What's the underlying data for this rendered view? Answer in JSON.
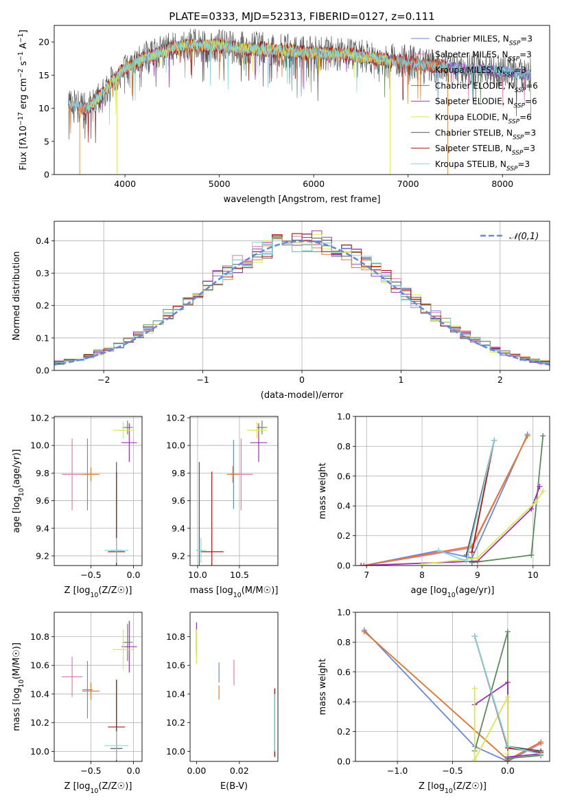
{
  "figure_title": "PLATE=0333, MJD=52313, FIBERID=0127, z=0.111",
  "models": [
    {
      "name": "Chabrier MILES",
      "nssp": "3",
      "color": "#6688dd"
    },
    {
      "name": "Salpeter MILES",
      "nssp": "3",
      "color": "#e079b3"
    },
    {
      "name": "Kroupa MILES",
      "nssp": "3",
      "color": "#e07b2a"
    },
    {
      "name": "Chabrier ELODIE",
      "nssp": "6",
      "color": "#5a8a5a"
    },
    {
      "name": "Salpeter ELODIE",
      "nssp": "6",
      "color": "#9a30b0"
    },
    {
      "name": "Kroupa ELODIE",
      "nssp": "6",
      "color": "#d8e84a"
    },
    {
      "name": "Chabrier STELIB",
      "nssp": "3",
      "color": "#555555"
    },
    {
      "name": "Salpeter STELIB",
      "nssp": "3",
      "color": "#b01010"
    },
    {
      "name": "Kroupa STELIB",
      "nssp": "3",
      "color": "#7fd6e0"
    }
  ],
  "chart_data": [
    {
      "id": "spectrum",
      "type": "line",
      "xlabel": "wavelength [Angstrom, rest frame]",
      "ylabel": "Flux [fλ10⁻¹⁷ erg cm⁻² s⁻¹ A⁻¹]",
      "xlim": [
        3250,
        8500
      ],
      "ylim": [
        0,
        22.5
      ],
      "xticks": [
        4000,
        5000,
        6000,
        7000,
        8000
      ],
      "yticks": [
        0,
        5,
        10,
        15,
        20
      ],
      "grid": false,
      "legend": "right",
      "continuum": {
        "x": [
          3400,
          3600,
          3750,
          3900,
          4000,
          4200,
          4400,
          4600,
          4800,
          5000,
          5200,
          5400,
          5600,
          5800,
          6000,
          6200,
          6400,
          6600,
          6800,
          7000,
          7200,
          7400,
          7600,
          7800,
          8000,
          8200,
          8300
        ],
        "y": [
          10.5,
          10,
          12,
          14.5,
          16,
          17.5,
          18.5,
          19.5,
          19.5,
          19.5,
          19.0,
          19.0,
          18.8,
          18.5,
          18.3,
          18.3,
          18.0,
          17.6,
          17.3,
          17.0,
          16.5,
          16.3,
          16.0,
          15.8,
          15.5,
          15.2,
          15.0
        ]
      }
    },
    {
      "id": "residuals",
      "type": "histogram",
      "xlabel": "(data-model)/error",
      "ylabel": "Normed distribution",
      "xlim": [
        -2.5,
        2.5
      ],
      "ylim": [
        0,
        0.46
      ],
      "xticks": [
        -2,
        -1,
        0,
        1,
        2
      ],
      "yticks": [
        0.0,
        0.1,
        0.2,
        0.3,
        0.4
      ],
      "grid": true,
      "legend": "top-right",
      "reference_label": "𝒩(0,1)",
      "bin_width": 0.1
    },
    {
      "id": "age-vs-Z",
      "type": "errorbar",
      "xlabel": "Z [log₁₀(Z/Z☉)]",
      "ylabel": "age  [log₁₀(age/yr)]",
      "xlim": [
        -0.93,
        0.1
      ],
      "ylim": [
        9.13,
        10.21
      ],
      "xticks": [
        -0.5,
        0.0
      ],
      "yticks": [
        9.2,
        9.4,
        9.6,
        9.8,
        10.0,
        10.2
      ],
      "grid": true,
      "points": [
        {
          "model": 0,
          "x": -0.54,
          "y": 9.79,
          "xerr": 0.06,
          "yerr": 0.26
        },
        {
          "model": 1,
          "x": -0.72,
          "y": 9.79,
          "xerr": 0.12,
          "yerr": 0.26
        },
        {
          "model": 2,
          "x": -0.5,
          "y": 9.79,
          "xerr": 0.1,
          "yerr": 0.05
        },
        {
          "model": 3,
          "x": -0.07,
          "y": 10.13,
          "xerr": 0.06,
          "yerr": 0.05
        },
        {
          "model": 4,
          "x": -0.05,
          "y": 10.02,
          "xerr": 0.09,
          "yerr": 0.14
        },
        {
          "model": 5,
          "x": -0.12,
          "y": 10.11,
          "xerr": 0.12,
          "yerr": 0.06
        },
        {
          "model": 6,
          "x": -0.2,
          "y": 9.24,
          "xerr": 0.07,
          "yerr": 0.64
        },
        {
          "model": 7,
          "x": -0.2,
          "y": 9.23,
          "xerr": 0.1,
          "yerr": 0.58
        },
        {
          "model": 8,
          "x": -0.2,
          "y": 9.24,
          "xerr": 0.14,
          "yerr": 0.09
        }
      ]
    },
    {
      "id": "age-vs-mass",
      "type": "errorbar",
      "xlabel": "mass [log₁₀(M/M☉)]",
      "ylabel": "",
      "xlim": [
        9.91,
        10.96
      ],
      "ylim": [
        9.13,
        10.21
      ],
      "xticks": [
        10.0,
        10.5
      ],
      "yticks": [
        9.2,
        9.4,
        9.6,
        9.8,
        10.0,
        10.2
      ],
      "grid": true,
      "points": [
        {
          "model": 0,
          "x": 10.43,
          "y": 9.79,
          "xerr": 0.04,
          "yerr": 0.25
        },
        {
          "model": 1,
          "x": 10.52,
          "y": 9.79,
          "xerr": 0.14,
          "yerr": 0.26
        },
        {
          "model": 2,
          "x": 10.42,
          "y": 9.79,
          "xerr": 0.07,
          "yerr": 0.06
        },
        {
          "model": 3,
          "x": 10.77,
          "y": 10.13,
          "xerr": 0.06,
          "yerr": 0.05
        },
        {
          "model": 4,
          "x": 10.73,
          "y": 10.02,
          "xerr": 0.1,
          "yerr": 0.14
        },
        {
          "model": 5,
          "x": 10.71,
          "y": 10.11,
          "xerr": 0.12,
          "yerr": 0.06
        },
        {
          "model": 6,
          "x": 10.02,
          "y": 9.24,
          "xerr": 0.03,
          "yerr": 0.64
        },
        {
          "model": 7,
          "x": 10.17,
          "y": 9.23,
          "xerr": 0.14,
          "yerr": 0.58
        },
        {
          "model": 8,
          "x": 10.04,
          "y": 9.24,
          "xerr": 0.06,
          "yerr": 0.09
        }
      ]
    },
    {
      "id": "weight-vs-age",
      "type": "line",
      "xlabel": "age  [log₁₀(age/yr)]",
      "ylabel": "mass weight",
      "xlim": [
        6.8,
        10.3
      ],
      "ylim": [
        0,
        1.0
      ],
      "xticks": [
        7,
        8,
        9,
        10
      ],
      "yticks": [
        0.0,
        0.2,
        0.4,
        0.6,
        0.8,
        1.0
      ],
      "grid": true,
      "series": [
        {
          "model": 0,
          "x": [
            6.95,
            8.3,
            8.9,
            9.9
          ],
          "y": [
            0.0,
            0.1,
            0.05,
            0.88
          ]
        },
        {
          "model": 1,
          "x": [
            6.95,
            8.9,
            9.9
          ],
          "y": [
            0.0,
            0.12,
            0.87
          ]
        },
        {
          "model": 2,
          "x": [
            6.95,
            8.9,
            9.9
          ],
          "y": [
            0.0,
            0.13,
            0.87
          ]
        },
        {
          "model": 3,
          "x": [
            8.9,
            9.97,
            10.18
          ],
          "y": [
            0.02,
            0.07,
            0.87
          ]
        },
        {
          "model": 4,
          "x": [
            6.9,
            9.0,
            9.97,
            10.12
          ],
          "y": [
            0.0,
            0.03,
            0.38,
            0.53
          ]
        },
        {
          "model": 5,
          "x": [
            8.0,
            9.0,
            10.06,
            10.18
          ],
          "y": [
            0.01,
            0.05,
            0.43,
            0.5
          ]
        },
        {
          "model": 6,
          "x": [
            8.8,
            9.3
          ],
          "y": [
            0.07,
            0.84
          ]
        },
        {
          "model": 7,
          "x": [
            8.9,
            9.3
          ],
          "y": [
            0.09,
            0.84
          ]
        },
        {
          "model": 8,
          "x": [
            8.3,
            8.8,
            9.3
          ],
          "y": [
            0.1,
            0.03,
            0.84
          ]
        }
      ]
    },
    {
      "id": "mass-vs-Z",
      "type": "errorbar",
      "xlabel": "Z [log₁₀(Z/Z☉)]",
      "ylabel": "mass [log₁₀(M/M☉)]",
      "xlim": [
        -0.93,
        0.1
      ],
      "ylim": [
        9.93,
        10.97
      ],
      "xticks": [
        -0.5,
        0.0
      ],
      "yticks": [
        10.0,
        10.2,
        10.4,
        10.6,
        10.8
      ],
      "grid": true,
      "points": [
        {
          "model": 0,
          "x": -0.54,
          "y": 10.43,
          "xerr": 0.06,
          "yerr": 0.2
        },
        {
          "model": 1,
          "x": -0.72,
          "y": 10.52,
          "xerr": 0.12,
          "yerr": 0.14
        },
        {
          "model": 2,
          "x": -0.5,
          "y": 10.42,
          "xerr": 0.1,
          "yerr": 0.06
        },
        {
          "model": 3,
          "x": -0.07,
          "y": 10.76,
          "xerr": 0.06,
          "yerr": 0.13
        },
        {
          "model": 4,
          "x": -0.05,
          "y": 10.73,
          "xerr": 0.09,
          "yerr": 0.18
        },
        {
          "model": 5,
          "x": -0.12,
          "y": 10.71,
          "xerr": 0.12,
          "yerr": 0.14
        },
        {
          "model": 6,
          "x": -0.2,
          "y": 10.02,
          "xerr": 0.07,
          "yerr": 0.48
        },
        {
          "model": 7,
          "x": -0.2,
          "y": 10.17,
          "xerr": 0.1,
          "yerr": 0.33
        },
        {
          "model": 8,
          "x": -0.2,
          "y": 10.04,
          "xerr": 0.14,
          "yerr": 0.1
        }
      ]
    },
    {
      "id": "mass-vs-EBV",
      "type": "errorbar",
      "xlabel": "E(B-V)",
      "ylabel": "",
      "xlim": [
        -0.003,
        0.038
      ],
      "ylim": [
        9.93,
        10.97
      ],
      "xticks": [
        0.0,
        0.02
      ],
      "xtick_labels": [
        "0.00",
        "0.02"
      ],
      "yticks": [
        10.0,
        10.2,
        10.4,
        10.6,
        10.8
      ],
      "grid": false,
      "points": [
        {
          "model": 0,
          "x": 0.0105,
          "y": 10.55,
          "xerr": 0,
          "yerr": 0.07
        },
        {
          "model": 1,
          "x": 0.0175,
          "y": 10.55,
          "xerr": 0,
          "yerr": 0.09
        },
        {
          "model": 2,
          "x": 0.0105,
          "y": 10.41,
          "xerr": 0,
          "yerr": 0.05
        },
        {
          "model": 3,
          "x": 0.0,
          "y": 10.76,
          "xerr": 0,
          "yerr": 0.09
        },
        {
          "model": 4,
          "x": 0.0,
          "y": 10.8,
          "xerr": 0,
          "yerr": 0.1
        },
        {
          "model": 5,
          "x": 0.0,
          "y": 10.73,
          "xerr": 0,
          "yerr": 0.12
        },
        {
          "model": 6,
          "x": 0.0365,
          "y": 10.2,
          "xerr": 0,
          "yerr": 0.23
        },
        {
          "model": 7,
          "x": 0.0365,
          "y": 10.2,
          "xerr": 0,
          "yerr": 0.24
        },
        {
          "model": 8,
          "x": 0.0365,
          "y": 10.2,
          "xerr": 0,
          "yerr": 0.2
        }
      ]
    },
    {
      "id": "weight-vs-Z",
      "type": "line",
      "xlabel": "Z [log₁₀(Z/Z☉)]",
      "ylabel": "mass weight",
      "xlim": [
        -1.38,
        0.38
      ],
      "ylim": [
        0,
        1.0
      ],
      "xticks": [
        -1.0,
        -0.5,
        0.0
      ],
      "yticks": [
        0.0,
        0.2,
        0.4,
        0.6,
        0.8,
        1.0
      ],
      "grid": true,
      "series": [
        {
          "model": 0,
          "x": [
            -1.3,
            -0.3,
            0.0,
            0.3
          ],
          "y": [
            0.88,
            0.1,
            0.0,
            0.12
          ]
        },
        {
          "model": 1,
          "x": [
            -1.3,
            0.0,
            0.3
          ],
          "y": [
            0.87,
            0.01,
            0.12
          ]
        },
        {
          "model": 2,
          "x": [
            -1.3,
            0.0,
            0.3
          ],
          "y": [
            0.87,
            0.01,
            0.13
          ]
        },
        {
          "model": 3,
          "x": [
            -0.3,
            0.0,
            0.0,
            0.3
          ],
          "y": [
            0.07,
            0.87,
            0.02,
            0.04
          ]
        },
        {
          "model": 4,
          "x": [
            -0.3,
            0.0,
            0.0,
            0.3
          ],
          "y": [
            0.38,
            0.53,
            0.03,
            0.05
          ]
        },
        {
          "model": 5,
          "x": [
            -0.3,
            -0.3,
            0.0,
            0.0
          ],
          "y": [
            0.49,
            0.01,
            0.43,
            0.05
          ]
        },
        {
          "model": 6,
          "x": [
            -0.3,
            0.0,
            0.3
          ],
          "y": [
            0.84,
            0.1,
            0.07
          ]
        },
        {
          "model": 7,
          "x": [
            -0.3,
            0.0,
            0.3
          ],
          "y": [
            0.84,
            0.09,
            0.06
          ]
        },
        {
          "model": 8,
          "x": [
            -0.3,
            0.0,
            0.3
          ],
          "y": [
            0.84,
            0.1,
            0.05
          ]
        }
      ]
    }
  ]
}
